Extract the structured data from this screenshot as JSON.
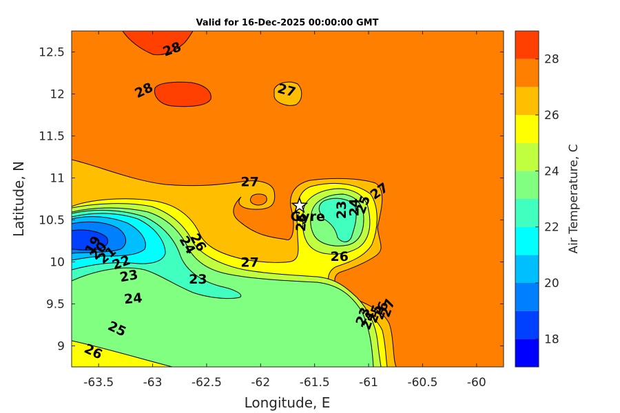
{
  "chart_data": {
    "type": "heatmap",
    "title": "Valid for 16-Dec-2025 00:00:00 GMT",
    "xlabel": "Longitude, E",
    "ylabel": "Latitude, N",
    "colorbar_label": "Air Temperature, C",
    "xlim": [
      -63.75,
      -59.75
    ],
    "ylim": [
      8.75,
      12.75
    ],
    "clim": [
      17,
      29
    ],
    "x_ticks": [
      -63.5,
      -63,
      -62.5,
      -62,
      -61.5,
      -61,
      -60.5,
      -60
    ],
    "x_tick_labels": [
      "-63.5",
      "-63",
      "-62.5",
      "-62",
      "-61.5",
      "-61",
      "-60.5",
      "-60"
    ],
    "y_ticks": [
      9,
      9.5,
      10,
      10.5,
      11,
      11.5,
      12,
      12.5
    ],
    "y_tick_labels": [
      "9",
      "9.5",
      "10",
      "10.5",
      "11",
      "11.5",
      "12",
      "12.5"
    ],
    "colorbar_ticks": [
      18,
      20,
      22,
      24,
      26,
      28
    ],
    "colorbar_tick_labels": [
      "18",
      "20",
      "22",
      "24",
      "26",
      "28"
    ],
    "levels": [
      {
        "min": 17,
        "max": 18,
        "color": "#0000ff"
      },
      {
        "min": 18,
        "max": 19,
        "color": "#0040ff"
      },
      {
        "min": 19,
        "max": 20,
        "color": "#0080ff"
      },
      {
        "min": 20,
        "max": 21,
        "color": "#00bfff"
      },
      {
        "min": 21,
        "max": 22,
        "color": "#00ffff"
      },
      {
        "min": 22,
        "max": 23,
        "color": "#40ffbf"
      },
      {
        "min": 23,
        "max": 24,
        "color": "#80ff80"
      },
      {
        "min": 24,
        "max": 25,
        "color": "#bfff40"
      },
      {
        "min": 25,
        "max": 26,
        "color": "#ffff00"
      },
      {
        "min": 26,
        "max": 27,
        "color": "#ffbf00"
      },
      {
        "min": 27,
        "max": 28,
        "color": "#ff8000"
      },
      {
        "min": 28,
        "max": 29,
        "color": "#ff4000"
      }
    ],
    "contour_labels": [
      {
        "text": "28",
        "lon": -62.82,
        "lat": 12.53,
        "rot": -20
      },
      {
        "text": "28",
        "lon": -63.08,
        "lat": 12.04,
        "rot": -25
      },
      {
        "text": "27",
        "lon": -61.76,
        "lat": 12.04,
        "rot": 15
      },
      {
        "text": "27",
        "lon": -62.1,
        "lat": 10.95,
        "rot": 0
      },
      {
        "text": "27",
        "lon": -60.9,
        "lat": 10.84,
        "rot": -35
      },
      {
        "text": "27",
        "lon": -62.1,
        "lat": 9.99,
        "rot": 0
      },
      {
        "text": "26",
        "lon": -61.27,
        "lat": 10.06,
        "rot": 0
      },
      {
        "text": "26",
        "lon": -62.58,
        "lat": 10.23,
        "rot": 60
      },
      {
        "text": "24",
        "lon": -62.68,
        "lat": 10.2,
        "rot": 60
      },
      {
        "text": "23",
        "lon": -62.58,
        "lat": 9.79,
        "rot": 0
      },
      {
        "text": "23",
        "lon": -63.22,
        "lat": 9.83,
        "rot": -10
      },
      {
        "text": "22",
        "lon": -63.29,
        "lat": 9.99,
        "rot": -20
      },
      {
        "text": "21",
        "lon": -63.42,
        "lat": 10.08,
        "rot": -40
      },
      {
        "text": "20",
        "lon": -63.5,
        "lat": 10.13,
        "rot": -50
      },
      {
        "text": "19",
        "lon": -63.55,
        "lat": 10.2,
        "rot": -60
      },
      {
        "text": "24",
        "lon": -63.18,
        "lat": 9.56,
        "rot": -5
      },
      {
        "text": "25",
        "lon": -63.33,
        "lat": 9.2,
        "rot": 25
      },
      {
        "text": "26",
        "lon": -63.55,
        "lat": 8.93,
        "rot": 25
      },
      {
        "text": "26",
        "lon": -61.62,
        "lat": 10.47,
        "rot": -85
      },
      {
        "text": "23",
        "lon": -61.25,
        "lat": 10.62,
        "rot": -90
      },
      {
        "text": "24",
        "lon": -61.13,
        "lat": 10.65,
        "rot": -90
      },
      {
        "text": "25",
        "lon": -61.05,
        "lat": 10.68,
        "rot": -70
      },
      {
        "text": "27",
        "lon": -60.82,
        "lat": 9.45,
        "rot": -70
      },
      {
        "text": "26",
        "lon": -60.88,
        "lat": 9.42,
        "rot": -70
      },
      {
        "text": "25",
        "lon": -60.94,
        "lat": 9.38,
        "rot": -70
      },
      {
        "text": "24",
        "lon": -61.0,
        "lat": 9.3,
        "rot": -70
      },
      {
        "text": "23",
        "lon": -61.05,
        "lat": 9.35,
        "rot": -70
      }
    ],
    "station": {
      "name": "Gyre",
      "lon": -61.64,
      "lat": 10.67
    }
  }
}
